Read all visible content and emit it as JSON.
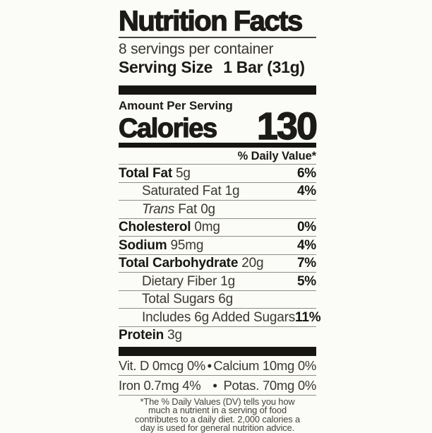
{
  "colors": {
    "background": "#fbfbf8",
    "text": "#1c1b18",
    "bar": "#161511",
    "rule": "#8f8d86"
  },
  "label": {
    "title": "Nutrition Facts",
    "servings_per_container": "8 servings per container",
    "serving_size_label": "Serving Size",
    "serving_size_value": "1 Bar (31g)",
    "amount_per_serving": "Amount Per Serving",
    "calories_label": "Calories",
    "calories_value": "130",
    "daily_value_header": "% Daily Value*",
    "nutrients": [
      {
        "name": "Total Fat",
        "amount": "5g",
        "dv": "6%",
        "bold": true,
        "indent": false,
        "italic_prefix": ""
      },
      {
        "name": "Saturated Fat",
        "amount": "1g",
        "dv": "4%",
        "bold": false,
        "indent": true,
        "italic_prefix": ""
      },
      {
        "name": " Fat",
        "amount": "0g",
        "dv": "",
        "bold": false,
        "indent": true,
        "italic_prefix": "Trans"
      },
      {
        "name": "Cholesterol",
        "amount": "0mg",
        "dv": "0%",
        "bold": true,
        "indent": false,
        "italic_prefix": ""
      },
      {
        "name": "Sodium",
        "amount": "95mg",
        "dv": "4%",
        "bold": true,
        "indent": false,
        "italic_prefix": ""
      },
      {
        "name": "Total Carbohydrate",
        "amount": "20g",
        "dv": "7%",
        "bold": true,
        "indent": false,
        "italic_prefix": ""
      },
      {
        "name": "Dietary Fiber",
        "amount": "1g",
        "dv": "5%",
        "bold": false,
        "indent": true,
        "italic_prefix": ""
      },
      {
        "name": "Total Sugars",
        "amount": "6g",
        "dv": "",
        "bold": false,
        "indent": true,
        "italic_prefix": ""
      },
      {
        "name": "Includes 6g Added Sugars",
        "amount": "",
        "dv": "11%",
        "bold": false,
        "indent": true,
        "italic_prefix": ""
      },
      {
        "name": "Protein",
        "amount": "3g",
        "dv": "",
        "bold": true,
        "indent": false,
        "italic_prefix": ""
      }
    ],
    "micronutrients": [
      {
        "left": "Vit. D 0mcg 0%",
        "separator": "•",
        "right": "Calcium 10mg 0%"
      },
      {
        "left": "Iron 0.7mg 4%",
        "separator": "•",
        "right": "Potas. 70mg 0%"
      }
    ],
    "footnote_lines": [
      "*The % Daily Values (DV) tells you how",
      "much a nutrient in a serving of food",
      "contributes to a daily diet. 2,000 calories a",
      "day is used for general nutrition advice."
    ]
  }
}
